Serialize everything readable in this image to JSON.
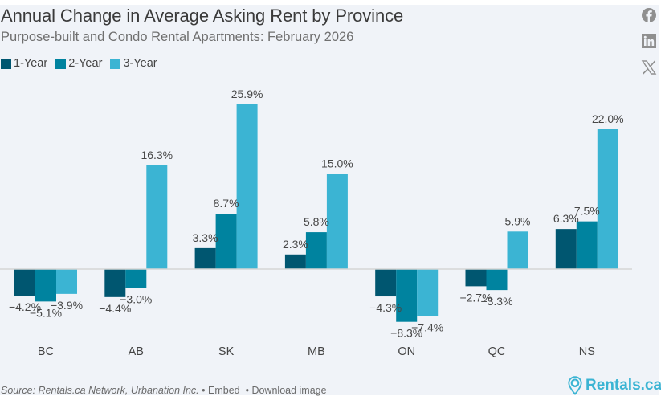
{
  "header": {
    "title": "Annual Change in Average Asking Rent by Province",
    "subtitle": "Purpose-built and Condo Rental Apartments: February 2026"
  },
  "legend": [
    {
      "label": "1-Year",
      "color": "#005670"
    },
    {
      "label": "2-Year",
      "color": "#00839f"
    },
    {
      "label": "3-Year",
      "color": "#3bb4d3"
    }
  ],
  "social": [
    {
      "name": "facebook-icon"
    },
    {
      "name": "linkedin-icon"
    },
    {
      "name": "x-icon"
    }
  ],
  "chart_data": {
    "type": "bar",
    "title": "Annual Change in Average Asking Rent by Province",
    "subtitle": "Purpose-built and Condo Rental Apartments: February 2026",
    "xlabel": "",
    "ylabel": "",
    "categories": [
      "BC",
      "AB",
      "SK",
      "MB",
      "ON",
      "QC",
      "NS"
    ],
    "series": [
      {
        "name": "1-Year",
        "color": "#005670",
        "values": [
          -4.2,
          -4.4,
          3.3,
          2.3,
          -4.3,
          -2.7,
          6.3
        ]
      },
      {
        "name": "2-Year",
        "color": "#00839f",
        "values": [
          -5.1,
          -3.0,
          8.7,
          5.8,
          -8.3,
          -3.3,
          7.5
        ]
      },
      {
        "name": "3-Year",
        "color": "#3bb4d3",
        "values": [
          -3.9,
          16.3,
          25.9,
          15.0,
          -7.4,
          5.9,
          22.0
        ]
      }
    ],
    "value_format": "%",
    "ylim": [
      -10.6,
      30
    ],
    "grid": false,
    "legend": "top-left",
    "data_labels": true
  },
  "footer": {
    "source": "Source: Rentals.ca Network, Urbanation Inc.",
    "embed": "Embed",
    "download": "Download image",
    "bullet": "•"
  },
  "logo": {
    "text": "Rentals.ca"
  }
}
